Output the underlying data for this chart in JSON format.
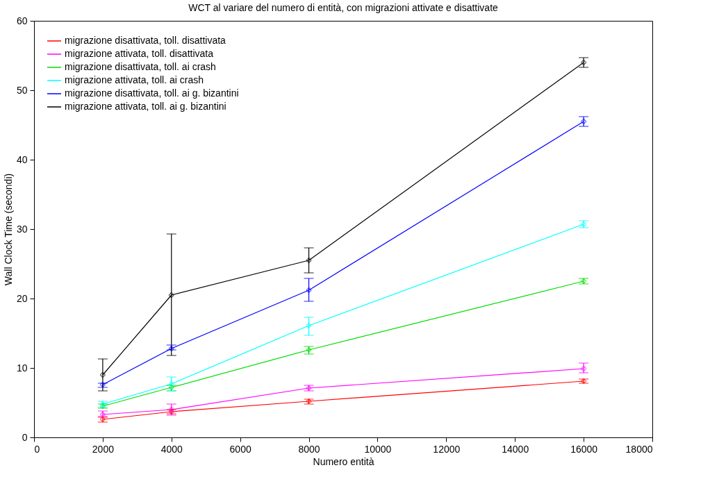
{
  "chart_data": {
    "type": "line",
    "title": "WCT al variare del numero di entità, con migrazioni attivate e disattivate",
    "xlabel": "Numero entità",
    "ylabel": "Wall Clock Time (secondi)",
    "x": [
      2000,
      4000,
      8000,
      16000
    ],
    "series": [
      {
        "name": "migrazione disattivata, toll. disattivata",
        "color": "#ff0000",
        "values": [
          2.6,
          3.7,
          5.2,
          8.1
        ],
        "errors": [
          [
            2.2,
            2.9
          ],
          [
            3.4,
            4.0
          ],
          [
            4.8,
            5.5
          ],
          [
            7.8,
            8.4
          ]
        ]
      },
      {
        "name": "migrazione attivata, toll. disattivata",
        "color": "#ff00ff",
        "values": [
          3.3,
          4.0,
          7.1,
          9.9
        ],
        "errors": [
          [
            3.0,
            3.8
          ],
          [
            3.2,
            4.8
          ],
          [
            6.7,
            7.5
          ],
          [
            9.3,
            10.7
          ]
        ]
      },
      {
        "name": "migrazione disattivata, toll. ai crash",
        "color": "#00dd00",
        "values": [
          4.5,
          7.2,
          12.6,
          22.5
        ],
        "errors": [
          [
            4.2,
            4.8
          ],
          [
            6.7,
            7.5
          ],
          [
            12.0,
            13.1
          ],
          [
            22.1,
            22.9
          ]
        ]
      },
      {
        "name": "migrazione attivata, toll. ai crash",
        "color": "#00ffff",
        "values": [
          4.8,
          7.7,
          16.1,
          30.7
        ],
        "errors": [
          [
            4.3,
            5.2
          ],
          [
            6.7,
            8.7
          ],
          [
            14.7,
            17.3
          ],
          [
            30.2,
            31.2
          ]
        ]
      },
      {
        "name": "migrazione disattivata, toll. ai g. bizantini",
        "color": "#0000ff",
        "values": [
          7.6,
          12.8,
          21.2,
          45.5
        ],
        "errors": [
          [
            7.2,
            7.8
          ],
          [
            12.6,
            13.3
          ],
          [
            19.6,
            22.9
          ],
          [
            44.8,
            46.2
          ]
        ]
      },
      {
        "name": "migrazione attivata, toll. ai g. bizantini",
        "color": "#000000",
        "values": [
          9.0,
          20.5,
          25.5,
          54.0
        ],
        "errors": [
          [
            6.7,
            11.3
          ],
          [
            11.8,
            29.3
          ],
          [
            23.7,
            27.3
          ],
          [
            53.3,
            54.7
          ]
        ]
      }
    ],
    "xlim": [
      0,
      18000
    ],
    "xticks": [
      0,
      2000,
      4000,
      6000,
      8000,
      10000,
      12000,
      14000,
      16000,
      18000
    ],
    "ylim": [
      0,
      60
    ],
    "yticks": [
      0,
      10,
      20,
      30,
      40,
      50,
      60
    ],
    "grid": false,
    "legend": "top left",
    "marker": "cross",
    "line_style": "solid"
  }
}
